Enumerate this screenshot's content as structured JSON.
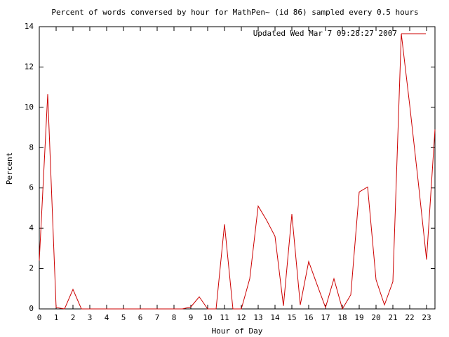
{
  "chart_data": {
    "type": "line",
    "title": "Percent of words conversed by hour for MathPen~ (id 86) sampled every 0.5 hours",
    "x_label": "Hour of Day",
    "y_label": "Percent",
    "x": [
      0,
      0.5,
      1,
      1.5,
      2,
      2.5,
      3,
      3.5,
      4,
      4.5,
      5,
      5.5,
      6,
      6.5,
      7,
      7.5,
      8,
      8.5,
      9,
      9.5,
      10,
      10.5,
      11,
      11.5,
      12,
      12.5,
      13,
      13.5,
      14,
      14.5,
      15,
      15.5,
      16,
      16.5,
      17,
      17.5,
      18,
      18.5,
      19,
      19.5,
      20,
      20.5,
      21,
      21.5,
      22,
      22.5,
      23,
      23.5
    ],
    "series": [
      {
        "name": "Updated Wed Mar  7 09:28:27 2007",
        "color": "#cc0000",
        "values": [
          2.4,
          10.65,
          0.07,
          0,
          0.97,
          0,
          0,
          0,
          0,
          0,
          0,
          0,
          0,
          0,
          0,
          0,
          0,
          0,
          0.1,
          0.6,
          0,
          0,
          4.2,
          0,
          0,
          1.5,
          5.1,
          4.4,
          3.6,
          0.15,
          4.7,
          0.2,
          2.35,
          1.2,
          0.07,
          1.5,
          0,
          0.7,
          5.8,
          6.05,
          1.45,
          0.2,
          1.35,
          13.65,
          10.1,
          6.35,
          2.45,
          8.9
        ]
      }
    ],
    "xlim": [
      0,
      23.5
    ],
    "ylim": [
      0,
      14
    ],
    "xticks": [
      0,
      1,
      2,
      3,
      4,
      5,
      6,
      7,
      8,
      9,
      10,
      11,
      12,
      13,
      14,
      15,
      16,
      17,
      18,
      19,
      20,
      21,
      22,
      23
    ],
    "yticks": [
      0,
      2,
      4,
      6,
      8,
      10,
      12,
      14
    ],
    "legend": "top-right",
    "grid": false
  }
}
